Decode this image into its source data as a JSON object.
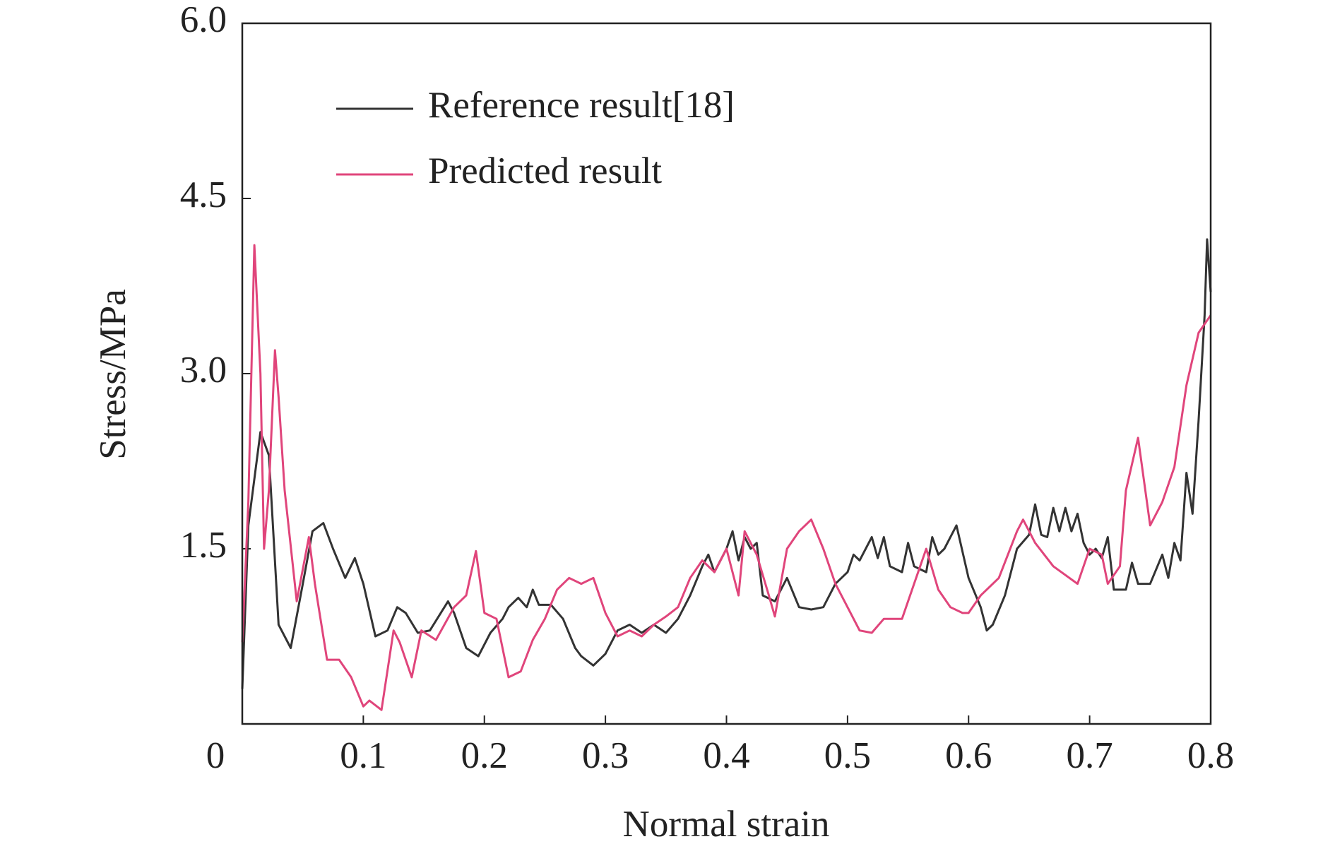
{
  "chart_data": {
    "type": "line",
    "x_label": "Normal strain",
    "y_label": "Stress/MPa",
    "xlim": [
      0,
      0.8
    ],
    "ylim": [
      0,
      6
    ],
    "xticks": [
      0,
      0.1,
      0.2,
      0.3,
      0.4,
      0.5,
      0.6,
      0.7,
      0.8
    ],
    "yticks": [
      1.5,
      {
        "value": 3,
        "label": "3.0"
      },
      4.5,
      {
        "value": 6,
        "label": "6.0"
      }
    ],
    "legend": "upper left",
    "series": [
      {
        "name": "Reference result[18]",
        "color": "#333333",
        "x": [
          0,
          0.005,
          0.015,
          0.022,
          0.03,
          0.04,
          0.05,
          0.058,
          0.067,
          0.075,
          0.085,
          0.093,
          0.1,
          0.11,
          0.12,
          0.128,
          0.135,
          0.145,
          0.155,
          0.17,
          0.175,
          0.185,
          0.195,
          0.205,
          0.215,
          0.22,
          0.228,
          0.235,
          0.24,
          0.245,
          0.255,
          0.265,
          0.275,
          0.28,
          0.29,
          0.3,
          0.31,
          0.32,
          0.33,
          0.34,
          0.35,
          0.36,
          0.37,
          0.38,
          0.385,
          0.39,
          0.4,
          0.405,
          0.41,
          0.415,
          0.42,
          0.425,
          0.43,
          0.44,
          0.45,
          0.46,
          0.47,
          0.48,
          0.49,
          0.5,
          0.505,
          0.51,
          0.52,
          0.525,
          0.53,
          0.535,
          0.545,
          0.55,
          0.555,
          0.565,
          0.57,
          0.575,
          0.58,
          0.59,
          0.6,
          0.61,
          0.615,
          0.62,
          0.63,
          0.64,
          0.65,
          0.655,
          0.66,
          0.665,
          0.67,
          0.675,
          0.68,
          0.685,
          0.69,
          0.695,
          0.7,
          0.705,
          0.71,
          0.715,
          0.72,
          0.73,
          0.735,
          0.74,
          0.75,
          0.76,
          0.765,
          0.77,
          0.775,
          0.78,
          0.785,
          0.79,
          0.795,
          0.797,
          0.8
        ],
        "values": [
          0.3,
          1.7,
          2.5,
          2.3,
          0.85,
          0.65,
          1.2,
          1.65,
          1.72,
          1.5,
          1.25,
          1.42,
          1.2,
          0.75,
          0.8,
          1.0,
          0.95,
          0.78,
          0.8,
          1.05,
          0.95,
          0.65,
          0.58,
          0.78,
          0.9,
          1.0,
          1.08,
          1.0,
          1.15,
          1.02,
          1.02,
          0.9,
          0.65,
          0.58,
          0.5,
          0.6,
          0.8,
          0.85,
          0.78,
          0.85,
          0.78,
          0.9,
          1.1,
          1.35,
          1.45,
          1.3,
          1.5,
          1.65,
          1.4,
          1.6,
          1.5,
          1.55,
          1.1,
          1.05,
          1.25,
          1.0,
          0.98,
          1.0,
          1.2,
          1.3,
          1.45,
          1.4,
          1.6,
          1.42,
          1.6,
          1.35,
          1.3,
          1.55,
          1.35,
          1.3,
          1.6,
          1.45,
          1.5,
          1.7,
          1.25,
          1.0,
          0.8,
          0.85,
          1.1,
          1.5,
          1.62,
          1.88,
          1.62,
          1.6,
          1.85,
          1.65,
          1.85,
          1.65,
          1.8,
          1.55,
          1.45,
          1.5,
          1.42,
          1.6,
          1.15,
          1.15,
          1.38,
          1.2,
          1.2,
          1.45,
          1.25,
          1.55,
          1.4,
          2.15,
          1.8,
          2.6,
          3.5,
          4.15,
          3.7
        ]
      },
      {
        "name": "Predicted result",
        "color": "#e0457b",
        "x": [
          0,
          0.005,
          0.01,
          0.015,
          0.018,
          0.022,
          0.027,
          0.03,
          0.035,
          0.045,
          0.055,
          0.06,
          0.07,
          0.08,
          0.09,
          0.1,
          0.105,
          0.115,
          0.125,
          0.13,
          0.14,
          0.148,
          0.16,
          0.175,
          0.185,
          0.193,
          0.2,
          0.21,
          0.22,
          0.23,
          0.24,
          0.25,
          0.26,
          0.27,
          0.28,
          0.29,
          0.3,
          0.31,
          0.32,
          0.33,
          0.34,
          0.35,
          0.36,
          0.37,
          0.38,
          0.39,
          0.4,
          0.41,
          0.415,
          0.425,
          0.435,
          0.44,
          0.45,
          0.46,
          0.47,
          0.48,
          0.49,
          0.5,
          0.51,
          0.52,
          0.53,
          0.545,
          0.555,
          0.565,
          0.575,
          0.585,
          0.595,
          0.6,
          0.61,
          0.625,
          0.64,
          0.645,
          0.655,
          0.67,
          0.69,
          0.7,
          0.71,
          0.715,
          0.725,
          0.73,
          0.74,
          0.75,
          0.76,
          0.77,
          0.78,
          0.79,
          0.8
        ],
        "values": [
          0.7,
          1.9,
          4.1,
          3.0,
          1.5,
          2.0,
          3.2,
          2.8,
          2.0,
          1.05,
          1.6,
          1.2,
          0.55,
          0.55,
          0.4,
          0.15,
          0.2,
          0.12,
          0.8,
          0.7,
          0.4,
          0.8,
          0.72,
          1.0,
          1.1,
          1.48,
          0.95,
          0.9,
          0.4,
          0.45,
          0.72,
          0.9,
          1.15,
          1.25,
          1.2,
          1.25,
          0.95,
          0.75,
          0.8,
          0.75,
          0.85,
          0.92,
          1.0,
          1.25,
          1.4,
          1.3,
          1.5,
          1.1,
          1.65,
          1.45,
          1.1,
          0.92,
          1.5,
          1.65,
          1.75,
          1.5,
          1.2,
          1.0,
          0.8,
          0.78,
          0.9,
          0.9,
          1.2,
          1.5,
          1.15,
          1.0,
          0.95,
          0.95,
          1.1,
          1.25,
          1.65,
          1.75,
          1.55,
          1.35,
          1.2,
          1.5,
          1.45,
          1.2,
          1.35,
          2.0,
          2.45,
          1.7,
          1.9,
          2.2,
          2.9,
          3.35,
          3.5
        ]
      }
    ]
  }
}
